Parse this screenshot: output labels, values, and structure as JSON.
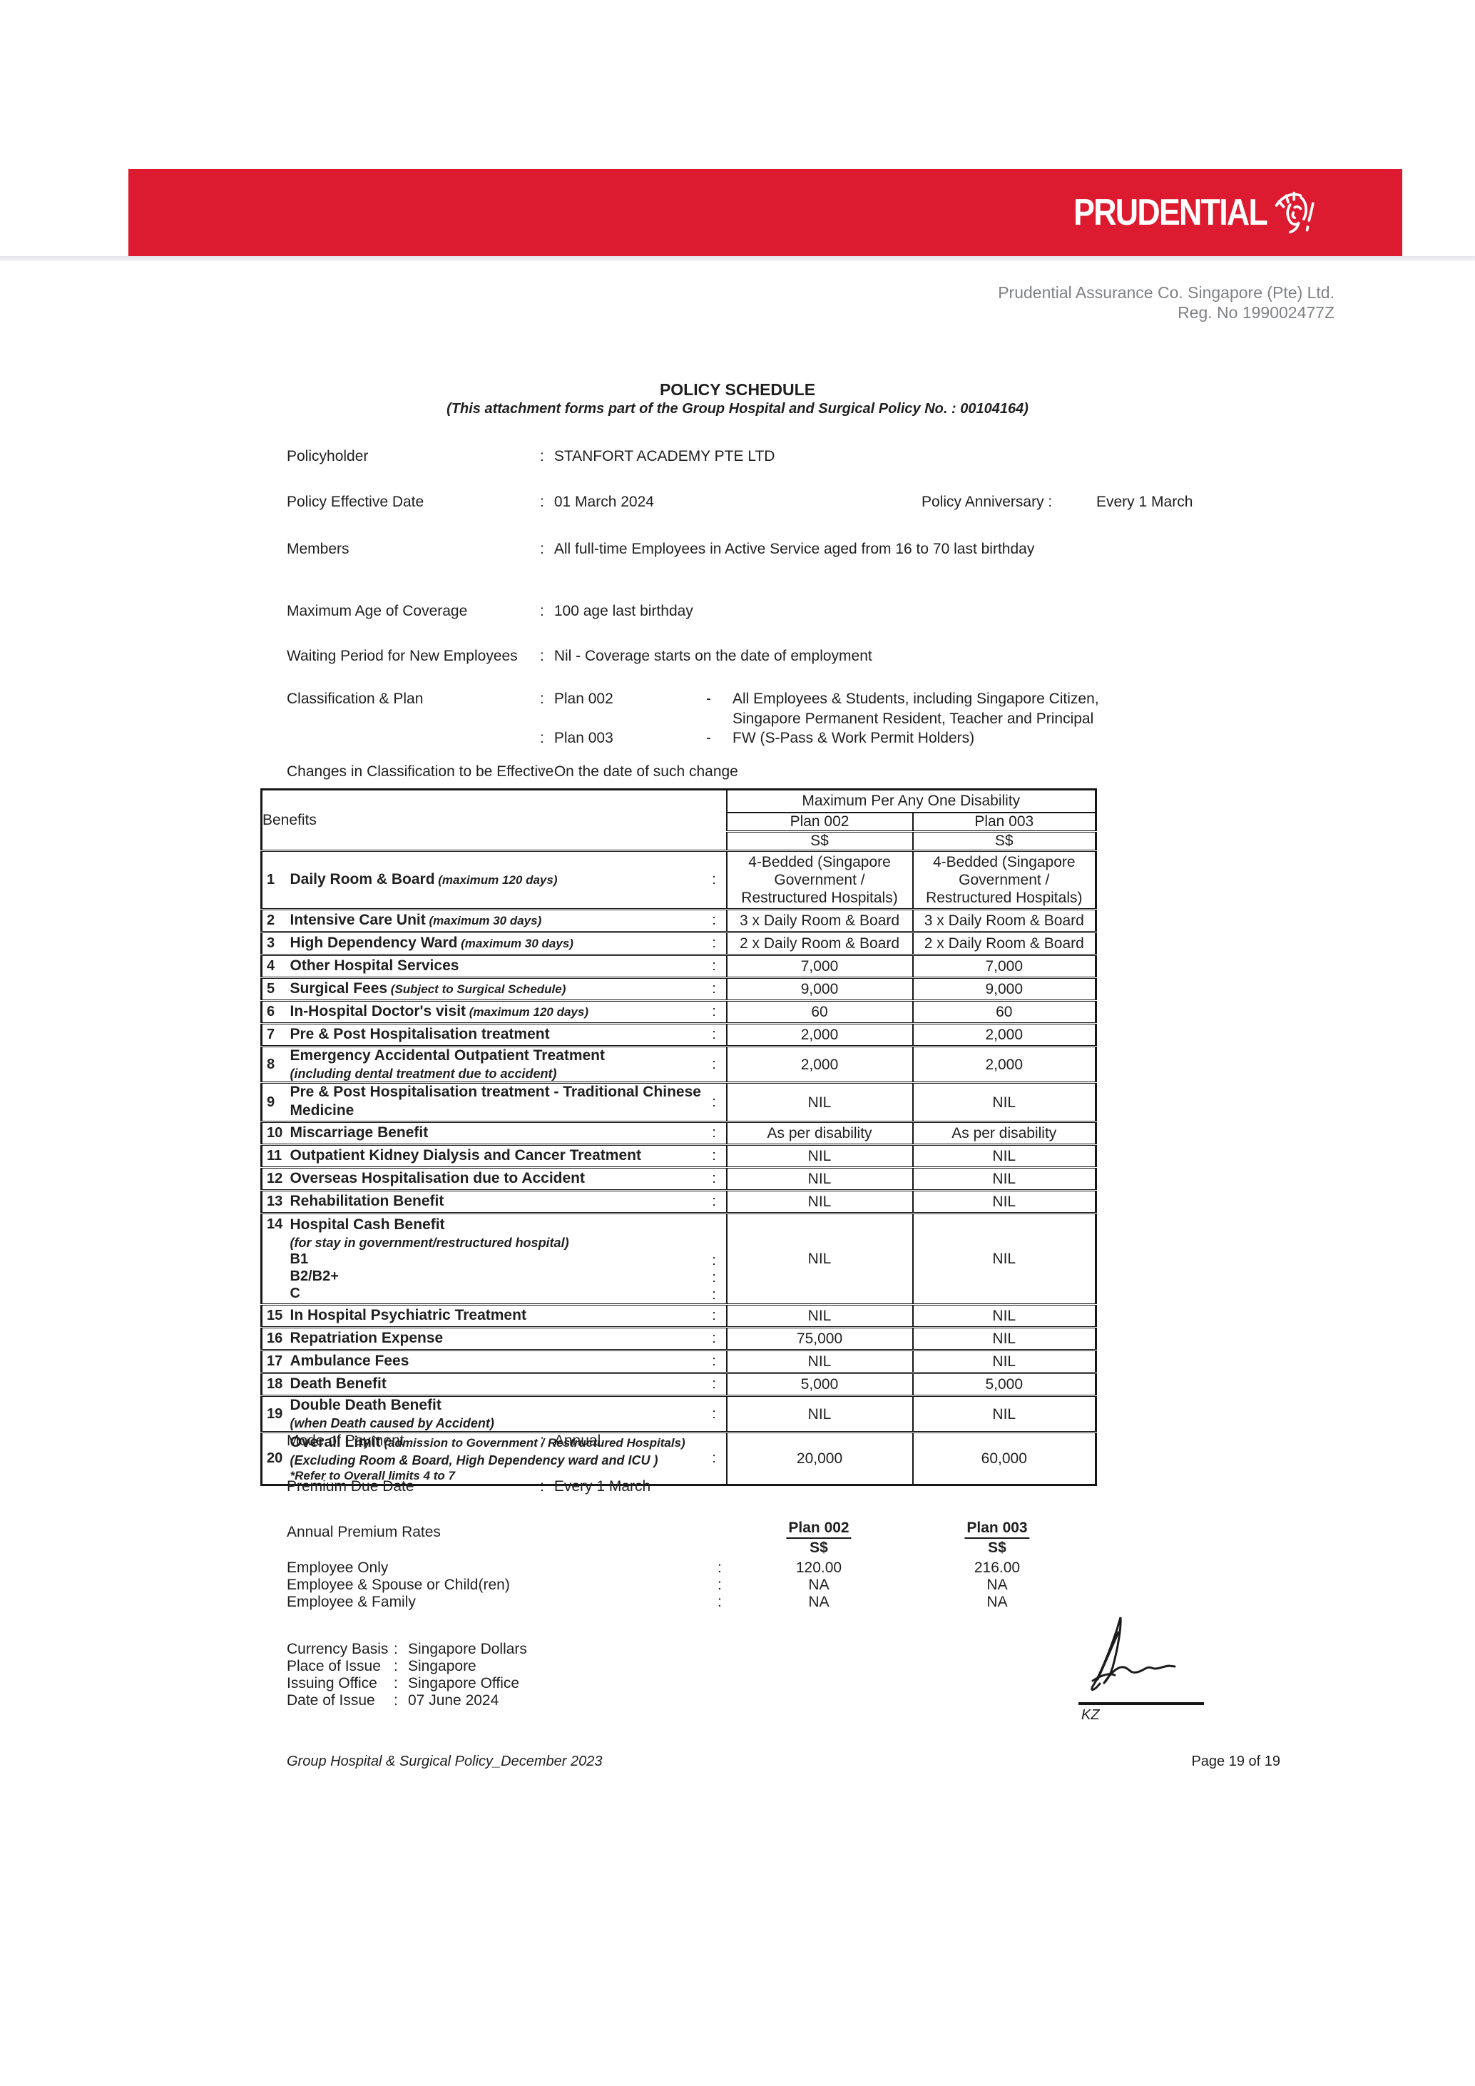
{
  "brand": {
    "logo_text": "PRUDENTIAL",
    "red": "#dc1b30"
  },
  "header": {
    "company_line1": "Prudential Assurance Co. Singapore (Pte) Ltd.",
    "company_line2": "Reg. No 199002477Z"
  },
  "title": {
    "main": "POLICY SCHEDULE",
    "subtitle": "(This attachment forms part of the Group Hospital and Surgical Policy No. : 00104164)"
  },
  "fields": {
    "policyholder": {
      "label": "Policyholder",
      "value": "STANFORT ACADEMY PTE LTD"
    },
    "effective_date": {
      "label": "Policy Effective Date",
      "value": "01 March 2024"
    },
    "anniversary": {
      "label": "Policy Anniversary :",
      "value": "Every 1 March"
    },
    "members": {
      "label": "Members",
      "value": "All full-time Employees in Active Service aged from 16 to 70 last birthday"
    },
    "max_age": {
      "label": "Maximum Age of Coverage",
      "value": "100 age last birthday"
    },
    "waiting_period": {
      "label": "Waiting Period for New Employees",
      "value": "Nil - Coverage starts on the date of employment"
    },
    "classification": {
      "label": "Classification & Plan",
      "plans": [
        {
          "plan": "Plan 002",
          "dash": "-",
          "desc_lines": [
            "All Employees & Students, including Singapore Citizen,",
            "Singapore Permanent Resident, Teacher and Principal"
          ]
        },
        {
          "plan": "Plan 003",
          "dash": "-",
          "desc_lines": [
            "FW (S-Pass & Work Permit Holders)"
          ]
        }
      ]
    },
    "changes": {
      "label": "Changes in Classification to be Effective",
      "value": "On the date of such change"
    }
  },
  "benefits_table": {
    "header": {
      "benefits": "Benefits",
      "span": "Maximum Per Any One Disability",
      "plan1": "Plan 002",
      "plan2": "Plan 003",
      "cur1": "S$",
      "cur2": "S$"
    },
    "rows": [
      {
        "num": "1",
        "title": "Daily Room & Board",
        "note": "(maximum 120 days)",
        "p002": "4-Bedded (Singapore Government / Restructured Hospitals)",
        "p003": "4-Bedded (Singapore Government / Restructured Hospitals)"
      },
      {
        "num": "2",
        "title": "Intensive Care Unit",
        "note": "(maximum 30 days)",
        "p002": "3 x Daily Room & Board",
        "p003": "3 x Daily Room & Board"
      },
      {
        "num": "3",
        "title": "High Dependency Ward",
        "note": "(maximum 30 days)",
        "p002": "2 x Daily Room & Board",
        "p003": "2 x Daily Room & Board"
      },
      {
        "num": "4",
        "title": "Other Hospital Services",
        "p002": "7,000",
        "p003": "7,000"
      },
      {
        "num": "5",
        "title": "Surgical Fees",
        "note": "(Subject to Surgical Schedule)",
        "p002": "9,000",
        "p003": "9,000"
      },
      {
        "num": "6",
        "title": "In-Hospital Doctor's visit",
        "note": "(maximum 120 days)",
        "p002": "60",
        "p003": "60"
      },
      {
        "num": "7",
        "title": "Pre & Post Hospitalisation treatment",
        "p002": "2,000",
        "p003": "2,000"
      },
      {
        "num": "8",
        "title": "Emergency Accidental Outpatient Treatment",
        "note_below": "(including dental treatment due to accident)",
        "p002": "2,000",
        "p003": "2,000"
      },
      {
        "num": "9",
        "title": "Pre & Post Hospitalisation treatment - Traditional Chinese Medicine",
        "p002": "NIL",
        "p003": "NIL"
      },
      {
        "num": "10",
        "title": "Miscarriage Benefit",
        "p002": "As per disability",
        "p003": "As per disability"
      },
      {
        "num": "11",
        "title": "Outpatient Kidney Dialysis and Cancer Treatment",
        "p002": "NIL",
        "p003": "NIL"
      },
      {
        "num": "12",
        "title": "Overseas Hospitalisation due to Accident",
        "p002": "NIL",
        "p003": "NIL"
      },
      {
        "num": "13",
        "title": "Rehabilitation Benefit",
        "p002": "NIL",
        "p003": "NIL"
      },
      {
        "num": "14",
        "title": "Hospital Cash Benefit",
        "note_below": "(for stay in government/restructured hospital)",
        "sub_items": [
          "B1",
          "B2/B2+",
          "C"
        ],
        "p002": "NIL",
        "p003": "NIL"
      },
      {
        "num": "15",
        "title": "In Hospital Psychiatric Treatment",
        "p002": "NIL",
        "p003": "NIL"
      },
      {
        "num": "16",
        "title": "Repatriation Expense",
        "p002": "75,000",
        "p003": "NIL"
      },
      {
        "num": "17",
        "title": "Ambulance Fees",
        "p002": "NIL",
        "p003": "NIL"
      },
      {
        "num": "18",
        "title": "Death Benefit",
        "p002": "5,000",
        "p003": "5,000"
      },
      {
        "num": "19",
        "title": "Double Death Benefit",
        "note_below": "(when Death caused by Accident)",
        "p002": "NIL",
        "p003": "NIL"
      },
      {
        "num": "20",
        "title": "Overall Limit",
        "note": "(admission to Government / Restructured Hospitals)",
        "extra_notes": [
          "(Excluding Room & Board, High Dependency ward and ICU )",
          "*Refer to Overall limits 4 to 7"
        ],
        "p002": "20,000",
        "p003": "60,000"
      }
    ]
  },
  "payment": {
    "mode": {
      "label": "Mode of Payment",
      "value": "Annual"
    },
    "due": {
      "label": "Premium Due Date",
      "value": "Every 1 March"
    }
  },
  "premium_rates": {
    "label": "Annual Premium Rates",
    "plan1": "Plan 002",
    "plan2": "Plan 003",
    "cur": "S$",
    "rows": [
      {
        "label": "Employee Only",
        "p002": "120.00",
        "p003": "216.00"
      },
      {
        "label": "Employee & Spouse or Child(ren)",
        "p002": "NA",
        "p003": "NA"
      },
      {
        "label": "Employee & Family",
        "p002": "NA",
        "p003": "NA"
      }
    ]
  },
  "issue_details": {
    "rows": [
      {
        "label": "Currency Basis",
        "value": "Singapore Dollars"
      },
      {
        "label": "Place of Issue",
        "value": "Singapore"
      },
      {
        "label": "Issuing Office",
        "value": "Singapore Office"
      },
      {
        "label": "Date of Issue",
        "value": "07 June 2024"
      }
    ]
  },
  "signature": {
    "initials": "KZ"
  },
  "footer": {
    "left": "Group Hospital & Surgical Policy_December 2023",
    "right": "Page 19 of 19"
  }
}
